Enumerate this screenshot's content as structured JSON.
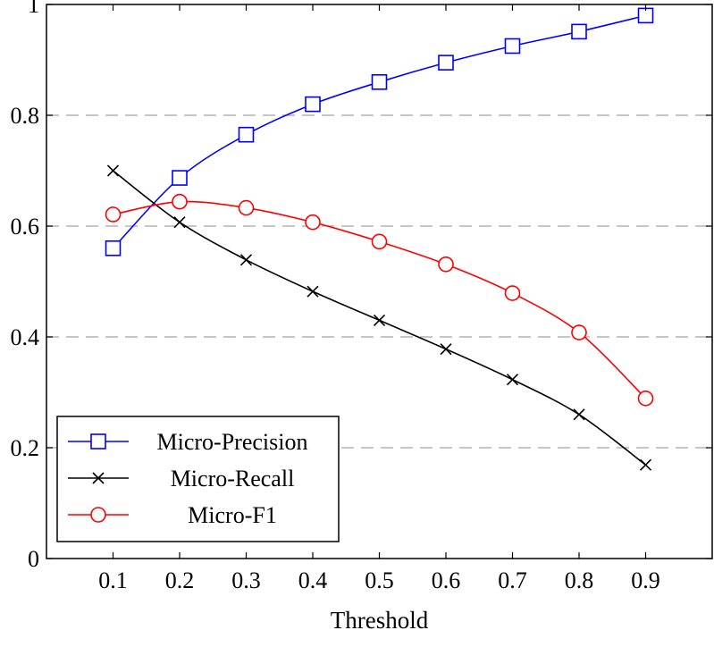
{
  "chart_data": {
    "type": "line",
    "title": "",
    "xlabel": "Threshold",
    "ylabel": "",
    "x": [
      0.1,
      0.2,
      0.3,
      0.4,
      0.5,
      0.6,
      0.7,
      0.8,
      0.9
    ],
    "xlim": [
      0.0,
      1.0
    ],
    "ylim": [
      0,
      1
    ],
    "xticks": [
      "0.1",
      "0.2",
      "0.3",
      "0.4",
      "0.5",
      "0.6",
      "0.7",
      "0.8",
      "0.9"
    ],
    "yticks": [
      "0",
      "0.2",
      "0.4",
      "0.6",
      "0.8",
      "1"
    ],
    "ytick_values": [
      0,
      0.2,
      0.4,
      0.6,
      0.8,
      1
    ],
    "grid": "horizontal dashed",
    "legend_position": "bottom-left",
    "series": [
      {
        "name": "Micro-Precision",
        "color": "#0000ff",
        "marker": "square",
        "values": [
          0.56,
          0.687,
          0.765,
          0.82,
          0.86,
          0.895,
          0.925,
          0.951,
          0.98
        ]
      },
      {
        "name": "Micro-Recall",
        "color": "#000000",
        "marker": "cross",
        "values": [
          0.7,
          0.607,
          0.539,
          0.482,
          0.43,
          0.378,
          0.323,
          0.26,
          0.169
        ]
      },
      {
        "name": "Micro-F1",
        "color": "#ff0000",
        "marker": "circle",
        "values": [
          0.621,
          0.644,
          0.633,
          0.607,
          0.572,
          0.531,
          0.479,
          0.408,
          0.289
        ]
      }
    ]
  }
}
